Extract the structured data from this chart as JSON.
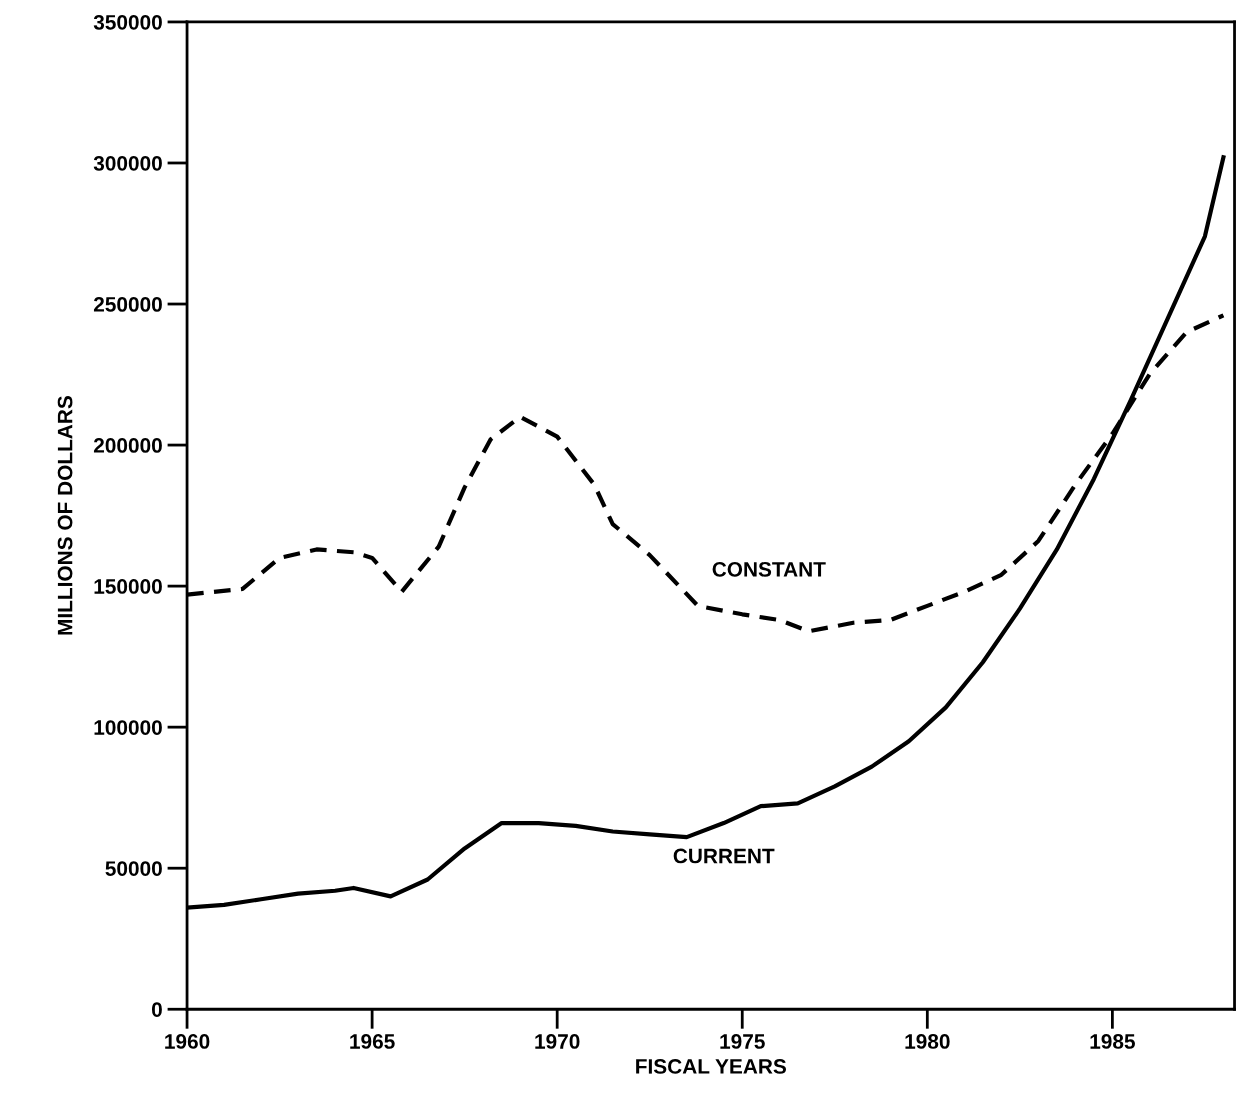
{
  "chart_data": {
    "type": "line",
    "xlabel": "FISCAL YEARS",
    "ylabel": "MILLIONS OF DOLLARS",
    "xlim": [
      1960,
      1988.3
    ],
    "ylim": [
      0,
      350000
    ],
    "xticks": [
      1960,
      1965,
      1970,
      1975,
      1980,
      1985
    ],
    "yticks": [
      0,
      50000,
      100000,
      150000,
      200000,
      250000,
      300000,
      350000
    ],
    "grid": false,
    "legend": false,
    "series": [
      {
        "name": "CONSTANT",
        "color": "#000000",
        "line_style": "dashed",
        "x": [
          1960,
          1961.5,
          1962.5,
          1963.5,
          1964.5,
          1965,
          1965.8,
          1966.8,
          1967.5,
          1968.2,
          1969,
          1970,
          1971,
          1971.5,
          1972.5,
          1973.8,
          1975,
          1976,
          1976.8,
          1978,
          1979,
          1980,
          1981,
          1982,
          1983,
          1984,
          1985,
          1986,
          1987,
          1988
        ],
        "values": [
          147000,
          149000,
          160000,
          163000,
          162000,
          160000,
          148000,
          164000,
          185000,
          202000,
          210000,
          203000,
          186000,
          172000,
          161000,
          143000,
          140000,
          138000,
          134000,
          137000,
          138000,
          143000,
          148000,
          154000,
          166000,
          186000,
          204000,
          225000,
          240000,
          246000
        ]
      },
      {
        "name": "CURRENT",
        "color": "#000000",
        "line_style": "solid",
        "x": [
          1960,
          1961,
          1962,
          1963,
          1964,
          1964.5,
          1965.5,
          1966.5,
          1967.5,
          1968.5,
          1969.5,
          1970.5,
          1971.5,
          1972.5,
          1973.5,
          1974.5,
          1975.5,
          1976.5,
          1977.5,
          1978.5,
          1979.5,
          1980.5,
          1981.5,
          1982.5,
          1983.5,
          1984.5,
          1985.5,
          1986.5,
          1987.5,
          1988
        ],
        "values": [
          36000,
          37000,
          39000,
          41000,
          42000,
          43000,
          40000,
          46000,
          57000,
          66000,
          66000,
          65000,
          63000,
          62000,
          61000,
          66000,
          72000,
          73000,
          79000,
          86000,
          95000,
          107000,
          123000,
          142000,
          163000,
          188000,
          216000,
          245000,
          274000,
          302000
        ]
      }
    ]
  }
}
